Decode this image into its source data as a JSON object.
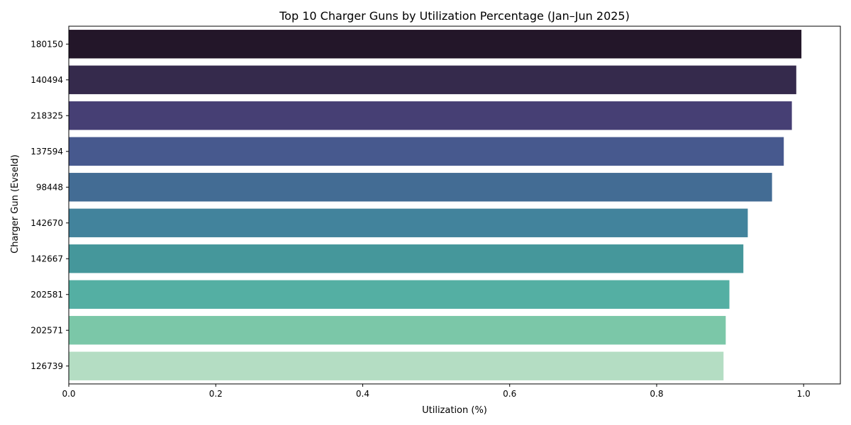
{
  "chart_data": {
    "type": "bar",
    "orientation": "horizontal",
    "title": "Top 10 Charger Guns by Utilization Percentage (Jan–Jun 2025)",
    "xlabel": "Utilization (%)",
    "ylabel": "Charger Gun (EvseId)",
    "categories": [
      "180150",
      "140494",
      "218325",
      "137594",
      "98448",
      "142670",
      "142667",
      "202581",
      "202571",
      "126739"
    ],
    "values": [
      0.997,
      0.99,
      0.984,
      0.973,
      0.957,
      0.924,
      0.918,
      0.899,
      0.894,
      0.891
    ],
    "colors": [
      "#231629",
      "#352a4c",
      "#463f74",
      "#47598e",
      "#436c94",
      "#42839c",
      "#45979b",
      "#54afa3",
      "#7bc7a8",
      "#b4ddc3"
    ],
    "xlim": [
      0,
      1.05
    ],
    "xticks": [
      0.0,
      0.2,
      0.4,
      0.6,
      0.8,
      1.0
    ],
    "xtick_labels": [
      "0.0",
      "0.2",
      "0.4",
      "0.6",
      "0.8",
      "1.0"
    ],
    "grid": false,
    "legend": "none"
  }
}
